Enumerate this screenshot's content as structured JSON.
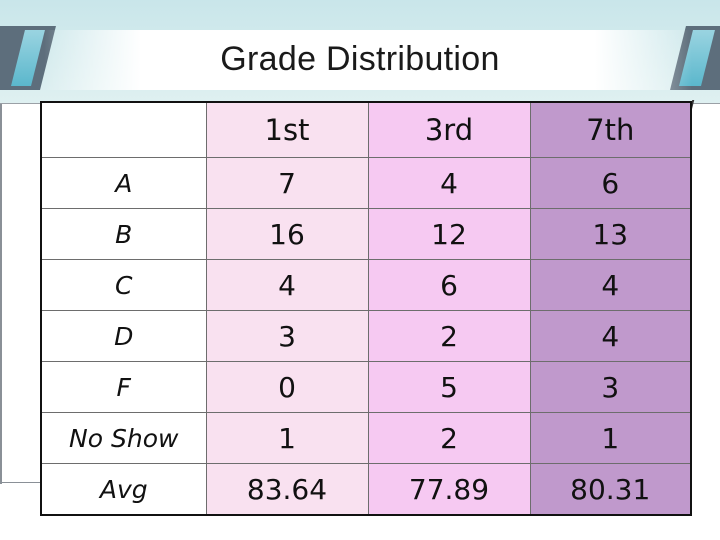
{
  "title": "Grade Distribution",
  "table": {
    "columns": [
      "",
      "1st",
      "3rd",
      "7th"
    ],
    "rows": [
      {
        "label": "A",
        "values": [
          "7",
          "4",
          "6"
        ]
      },
      {
        "label": "B",
        "values": [
          "16",
          "12",
          "13"
        ]
      },
      {
        "label": "C",
        "values": [
          "4",
          "6",
          "4"
        ]
      },
      {
        "label": "D",
        "values": [
          "3",
          "2",
          "4"
        ]
      },
      {
        "label": "F",
        "values": [
          "0",
          "5",
          "3"
        ]
      },
      {
        "label": "No Show",
        "values": [
          "1",
          "2",
          "1"
        ]
      },
      {
        "label": "Avg",
        "values": [
          "83.64",
          "77.89",
          "80.31"
        ]
      }
    ]
  },
  "colors": {
    "col_1st": "#f9e1f0",
    "col_3rd": "#f6c9f2",
    "col_7th": "#c099cc",
    "banner": "#c9e6ea",
    "slab": "#5d6e7c"
  }
}
